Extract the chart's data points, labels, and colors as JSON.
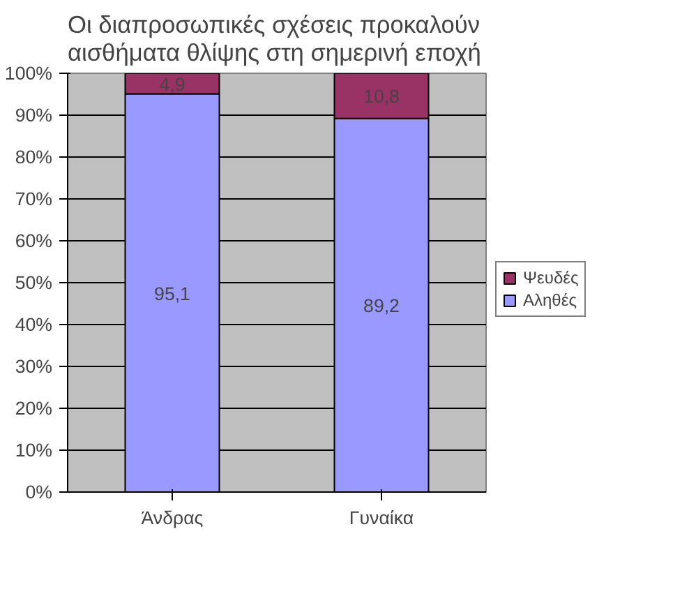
{
  "chart_data": {
    "type": "bar",
    "stacked": true,
    "title": "Οι διαπροσωπικές σχέσεις προκαλούν αισθήματα θλίψης στη σημερινή εποχή",
    "categories": [
      "Άνδρας",
      "Γυναίκα"
    ],
    "series": [
      {
        "name": "Αληθές",
        "color": "#9999ff",
        "values": [
          95.1,
          89.2
        ],
        "value_labels": [
          "95,1",
          "89,2"
        ]
      },
      {
        "name": "Ψευδές",
        "color": "#993366",
        "values": [
          4.9,
          10.8
        ],
        "value_labels": [
          "4,9",
          "10,8"
        ]
      }
    ],
    "ylim": [
      0,
      100
    ],
    "yticks": [
      {
        "value": 0,
        "label": "0%"
      },
      {
        "value": 10,
        "label": "10%"
      },
      {
        "value": 20,
        "label": "20%"
      },
      {
        "value": 30,
        "label": "30%"
      },
      {
        "value": 40,
        "label": "40%"
      },
      {
        "value": 50,
        "label": "50%"
      },
      {
        "value": 60,
        "label": "60%"
      },
      {
        "value": 70,
        "label": "70%"
      },
      {
        "value": 80,
        "label": "80%"
      },
      {
        "value": 90,
        "label": "90%"
      },
      {
        "value": 100,
        "label": "100%"
      }
    ],
    "grid": "y",
    "legend": "right"
  }
}
